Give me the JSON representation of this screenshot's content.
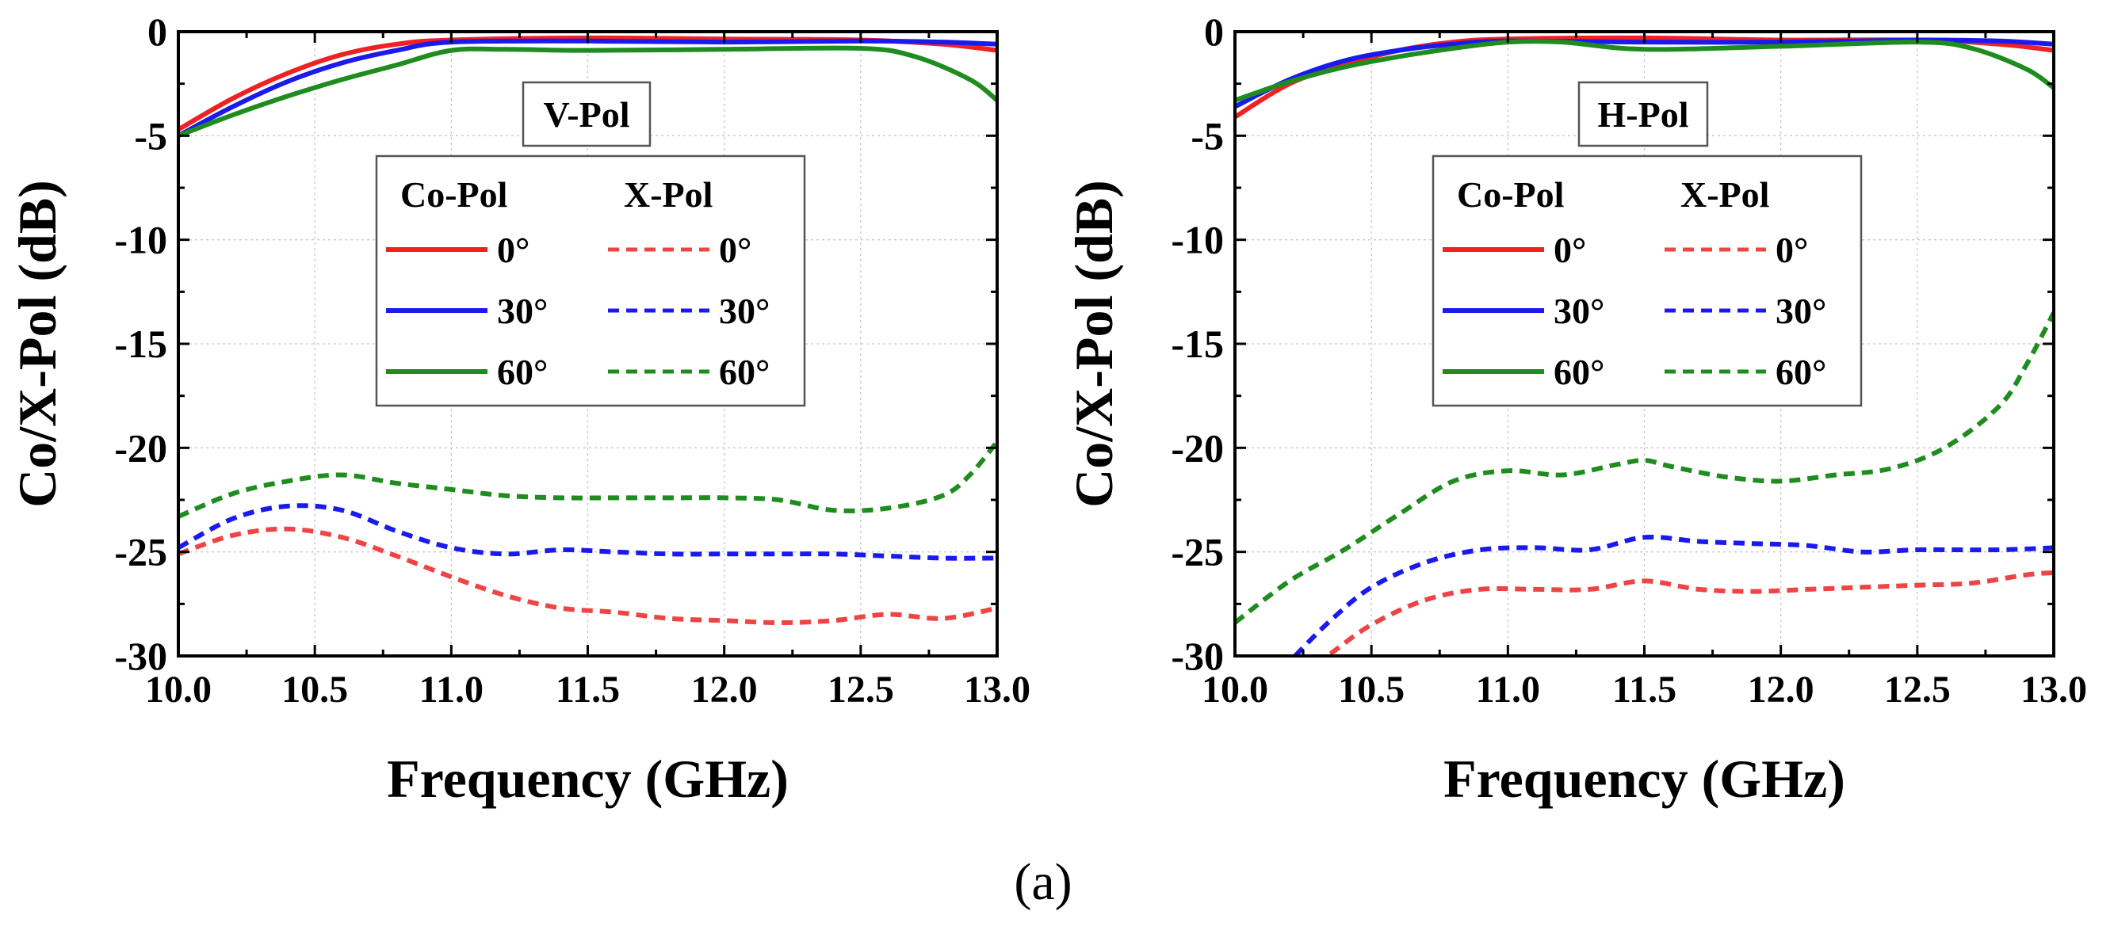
{
  "figure_caption": "(a)",
  "colors": {
    "deg0": "#ee2222",
    "deg30": "#1a1aee",
    "deg60": "#1e8c1e",
    "xpol_deg0": "#ee4444"
  },
  "chart_data": [
    {
      "type": "line",
      "title": "V-Pol",
      "xlabel": "Frequency (GHz)",
      "ylabel": "Co/X-Pol (dB)",
      "xlim": [
        10.0,
        13.0
      ],
      "ylim": [
        -30,
        0
      ],
      "xticks": [
        "10.0",
        "10.5",
        "11.0",
        "11.5",
        "12.0",
        "12.5",
        "13.0"
      ],
      "yticks": [
        "0",
        "-5",
        "-10",
        "-15",
        "-20",
        "-25",
        "-30"
      ],
      "grid": true,
      "legend": {
        "placement": "center",
        "col_headers": [
          "Co-Pol",
          "X-Pol"
        ],
        "labels": [
          "0°",
          "30°",
          "60°"
        ]
      },
      "series": [
        {
          "name": "Co-Pol 0°",
          "kind": "co",
          "color": "deg0",
          "x": [
            10.0,
            10.2,
            10.4,
            10.6,
            10.8,
            11.0,
            11.5,
            12.0,
            12.5,
            12.8,
            13.0
          ],
          "y": [
            -4.7,
            -3.2,
            -2.0,
            -1.1,
            -0.6,
            -0.4,
            -0.3,
            -0.35,
            -0.4,
            -0.6,
            -0.9
          ]
        },
        {
          "name": "Co-Pol 30°",
          "kind": "co",
          "color": "deg30",
          "x": [
            10.0,
            10.2,
            10.4,
            10.6,
            10.8,
            11.0,
            11.5,
            12.0,
            12.5,
            12.8,
            13.0
          ],
          "y": [
            -5.0,
            -3.6,
            -2.4,
            -1.5,
            -0.9,
            -0.5,
            -0.45,
            -0.5,
            -0.45,
            -0.5,
            -0.6
          ]
        },
        {
          "name": "Co-Pol 60°",
          "kind": "co",
          "color": "deg60",
          "x": [
            10.0,
            10.2,
            10.4,
            10.6,
            10.8,
            11.0,
            11.2,
            11.5,
            12.0,
            12.5,
            12.7,
            12.9,
            13.0
          ],
          "y": [
            -5.0,
            -4.0,
            -3.1,
            -2.3,
            -1.6,
            -0.9,
            -0.85,
            -0.9,
            -0.85,
            -0.8,
            -1.2,
            -2.3,
            -3.3
          ]
        },
        {
          "name": "X-Pol 0°",
          "kind": "x",
          "color": "xpol_deg0",
          "x": [
            10.0,
            10.2,
            10.4,
            10.6,
            10.8,
            11.0,
            11.2,
            11.4,
            11.6,
            11.8,
            12.0,
            12.2,
            12.4,
            12.6,
            12.8,
            13.0
          ],
          "y": [
            -25.1,
            -24.2,
            -23.9,
            -24.3,
            -25.2,
            -26.2,
            -27.1,
            -27.7,
            -27.9,
            -28.2,
            -28.3,
            -28.4,
            -28.3,
            -28.0,
            -28.2,
            -27.7
          ]
        },
        {
          "name": "X-Pol 30°",
          "kind": "x",
          "color": "deg30",
          "x": [
            10.0,
            10.2,
            10.4,
            10.6,
            10.8,
            11.0,
            11.2,
            11.4,
            11.6,
            11.8,
            12.0,
            12.2,
            12.4,
            12.6,
            12.8,
            13.0
          ],
          "y": [
            -24.8,
            -23.4,
            -22.8,
            -23.0,
            -24.0,
            -24.8,
            -25.1,
            -24.9,
            -25.0,
            -25.1,
            -25.1,
            -25.1,
            -25.1,
            -25.2,
            -25.3,
            -25.3
          ]
        },
        {
          "name": "X-Pol 60°",
          "kind": "x",
          "color": "deg60",
          "x": [
            10.0,
            10.2,
            10.4,
            10.6,
            10.8,
            11.0,
            11.2,
            11.4,
            11.6,
            11.8,
            12.0,
            12.2,
            12.4,
            12.6,
            12.8,
            12.9,
            13.0
          ],
          "y": [
            -23.3,
            -22.2,
            -21.6,
            -21.3,
            -21.7,
            -22.0,
            -22.3,
            -22.4,
            -22.4,
            -22.4,
            -22.4,
            -22.5,
            -23.0,
            -22.9,
            -22.3,
            -21.3,
            -19.7
          ]
        }
      ]
    },
    {
      "type": "line",
      "title": "H-Pol",
      "xlabel": "Frequency (GHz)",
      "ylabel": "Co/X-Pol (dB)",
      "xlim": [
        10.0,
        13.0
      ],
      "ylim": [
        -30,
        0
      ],
      "xticks": [
        "10.0",
        "10.5",
        "11.0",
        "11.5",
        "12.0",
        "12.5",
        "13.0"
      ],
      "yticks": [
        "0",
        "-5",
        "-10",
        "-15",
        "-20",
        "-25",
        "-30"
      ],
      "grid": true,
      "legend": {
        "placement": "center",
        "col_headers": [
          "Co-Pol",
          "X-Pol"
        ],
        "labels": [
          "0°",
          "30°",
          "60°"
        ]
      },
      "series": [
        {
          "name": "Co-Pol 0°",
          "kind": "co",
          "color": "deg0",
          "x": [
            10.0,
            10.2,
            10.4,
            10.6,
            10.8,
            11.0,
            11.5,
            12.0,
            12.5,
            12.8,
            13.0
          ],
          "y": [
            -4.1,
            -2.5,
            -1.6,
            -0.9,
            -0.5,
            -0.35,
            -0.3,
            -0.4,
            -0.4,
            -0.6,
            -0.9
          ]
        },
        {
          "name": "Co-Pol 30°",
          "kind": "co",
          "color": "deg30",
          "x": [
            10.0,
            10.2,
            10.4,
            10.6,
            10.8,
            11.0,
            11.5,
            12.0,
            12.5,
            12.8,
            13.0
          ],
          "y": [
            -3.6,
            -2.3,
            -1.4,
            -0.9,
            -0.6,
            -0.45,
            -0.5,
            -0.5,
            -0.4,
            -0.45,
            -0.6
          ]
        },
        {
          "name": "Co-Pol 60°",
          "kind": "co",
          "color": "deg60",
          "x": [
            10.0,
            10.2,
            10.4,
            10.6,
            10.8,
            11.0,
            11.2,
            11.5,
            12.0,
            12.5,
            12.7,
            12.9,
            13.0
          ],
          "y": [
            -3.3,
            -2.4,
            -1.7,
            -1.2,
            -0.8,
            -0.5,
            -0.5,
            -0.85,
            -0.7,
            -0.5,
            -0.8,
            -1.8,
            -2.7
          ]
        },
        {
          "name": "X-Pol 0°",
          "kind": "x",
          "color": "xpol_deg0",
          "x": [
            10.35,
            10.5,
            10.7,
            10.9,
            11.1,
            11.3,
            11.5,
            11.7,
            11.9,
            12.1,
            12.3,
            12.5,
            12.7,
            12.9,
            13.0
          ],
          "y": [
            -29.9,
            -28.5,
            -27.3,
            -26.8,
            -26.8,
            -26.8,
            -26.4,
            -26.8,
            -26.9,
            -26.8,
            -26.7,
            -26.6,
            -26.5,
            -26.1,
            -26.0
          ]
        },
        {
          "name": "X-Pol 30°",
          "kind": "x",
          "color": "deg30",
          "x": [
            10.22,
            10.35,
            10.5,
            10.7,
            10.9,
            11.1,
            11.3,
            11.5,
            11.7,
            11.9,
            12.1,
            12.3,
            12.5,
            12.8,
            13.0
          ],
          "y": [
            -30.0,
            -28.3,
            -26.7,
            -25.5,
            -24.9,
            -24.8,
            -24.9,
            -24.3,
            -24.5,
            -24.6,
            -24.7,
            -25.0,
            -24.9,
            -24.9,
            -24.8
          ]
        },
        {
          "name": "X-Pol 60°",
          "kind": "x",
          "color": "deg60",
          "x": [
            10.0,
            10.2,
            10.4,
            10.6,
            10.8,
            11.0,
            11.2,
            11.4,
            11.5,
            11.6,
            11.8,
            12.0,
            12.2,
            12.4,
            12.6,
            12.8,
            12.9,
            13.0
          ],
          "y": [
            -28.4,
            -26.4,
            -24.9,
            -23.2,
            -21.6,
            -21.1,
            -21.3,
            -20.8,
            -20.6,
            -20.9,
            -21.4,
            -21.6,
            -21.3,
            -21.0,
            -20.0,
            -18.0,
            -16.0,
            -13.5
          ]
        }
      ]
    }
  ]
}
